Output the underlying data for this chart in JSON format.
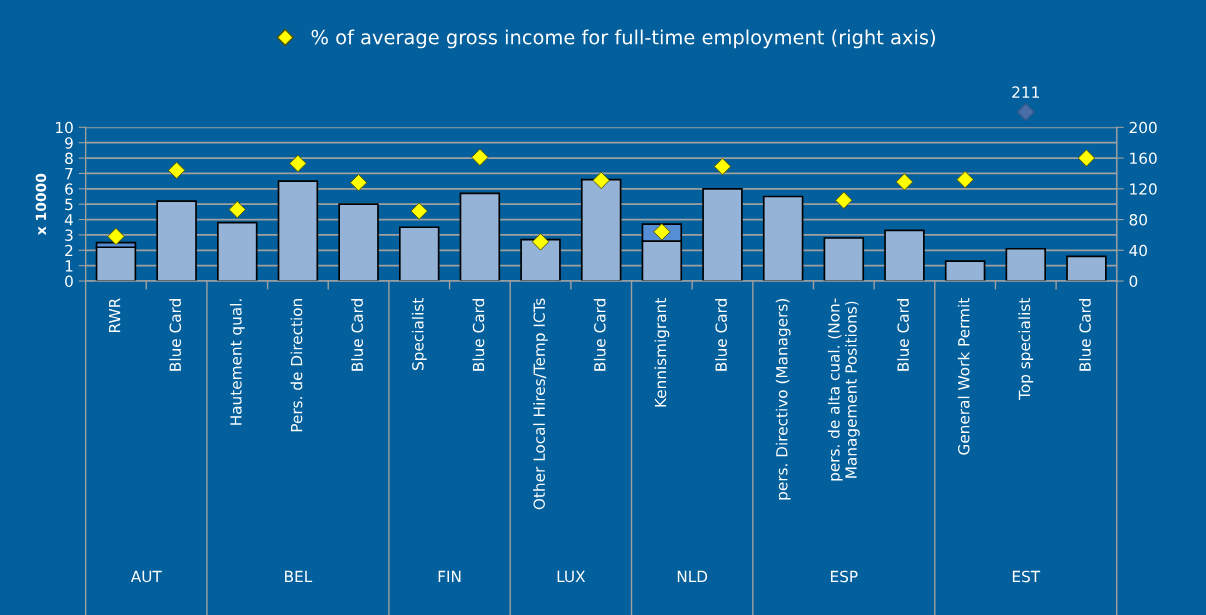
{
  "chart_data": {
    "type": "bar",
    "stacked": true,
    "categories": [
      "RWR",
      "Blue Card",
      "Hautement qual.",
      "Pers. de Direction",
      "Blue Card",
      "Specialist",
      "Blue Card",
      "Other Local Hires/Temp ICTs",
      "Blue Card",
      "Kennismigrant",
      "Blue Card",
      "pers. Directivo (Managers)",
      "pers. de alta cual. (Non-\nManagement Positions)",
      "Blue Card",
      "General Work Permit",
      "Top specialist",
      "Blue Card"
    ],
    "series": [
      {
        "color": "#95b3d7",
        "values": [
          2.2,
          5.2,
          3.8,
          6.5,
          5.0,
          3.5,
          5.7,
          2.7,
          6.6,
          2.6,
          6.0,
          5.5,
          2.8,
          3.3,
          1.3,
          2.1,
          1.6
        ]
      },
      {
        "color": "#558ed5",
        "values": [
          0.3,
          null,
          null,
          null,
          null,
          null,
          null,
          null,
          null,
          1.1,
          null,
          null,
          null,
          null,
          null,
          null,
          null
        ]
      },
      {
        "type": "scatter",
        "axis": "y2",
        "name": "% of average gross income for full-time employment (right axis)",
        "color": "#ffff00",
        "marker": "diamond",
        "values": [
          58,
          144,
          93,
          153,
          128,
          91,
          161,
          51,
          131,
          64,
          149,
          null,
          105,
          129,
          132,
          null,
          160
        ]
      }
    ],
    "ylabel": "x 10000",
    "ylim": [
      0,
      10
    ],
    "yticks": [
      0,
      1,
      2,
      3,
      4,
      5,
      6,
      7,
      8,
      9,
      10
    ],
    "y2lim": [
      0,
      200
    ],
    "y2ticks": [
      0,
      40,
      80,
      120,
      160,
      200
    ],
    "grid": "y",
    "legend": "top",
    "annotations": [
      "211",
      "AUT",
      "BEL",
      "FIN",
      "LUX",
      "NLD",
      "ESP",
      "EST"
    ]
  }
}
